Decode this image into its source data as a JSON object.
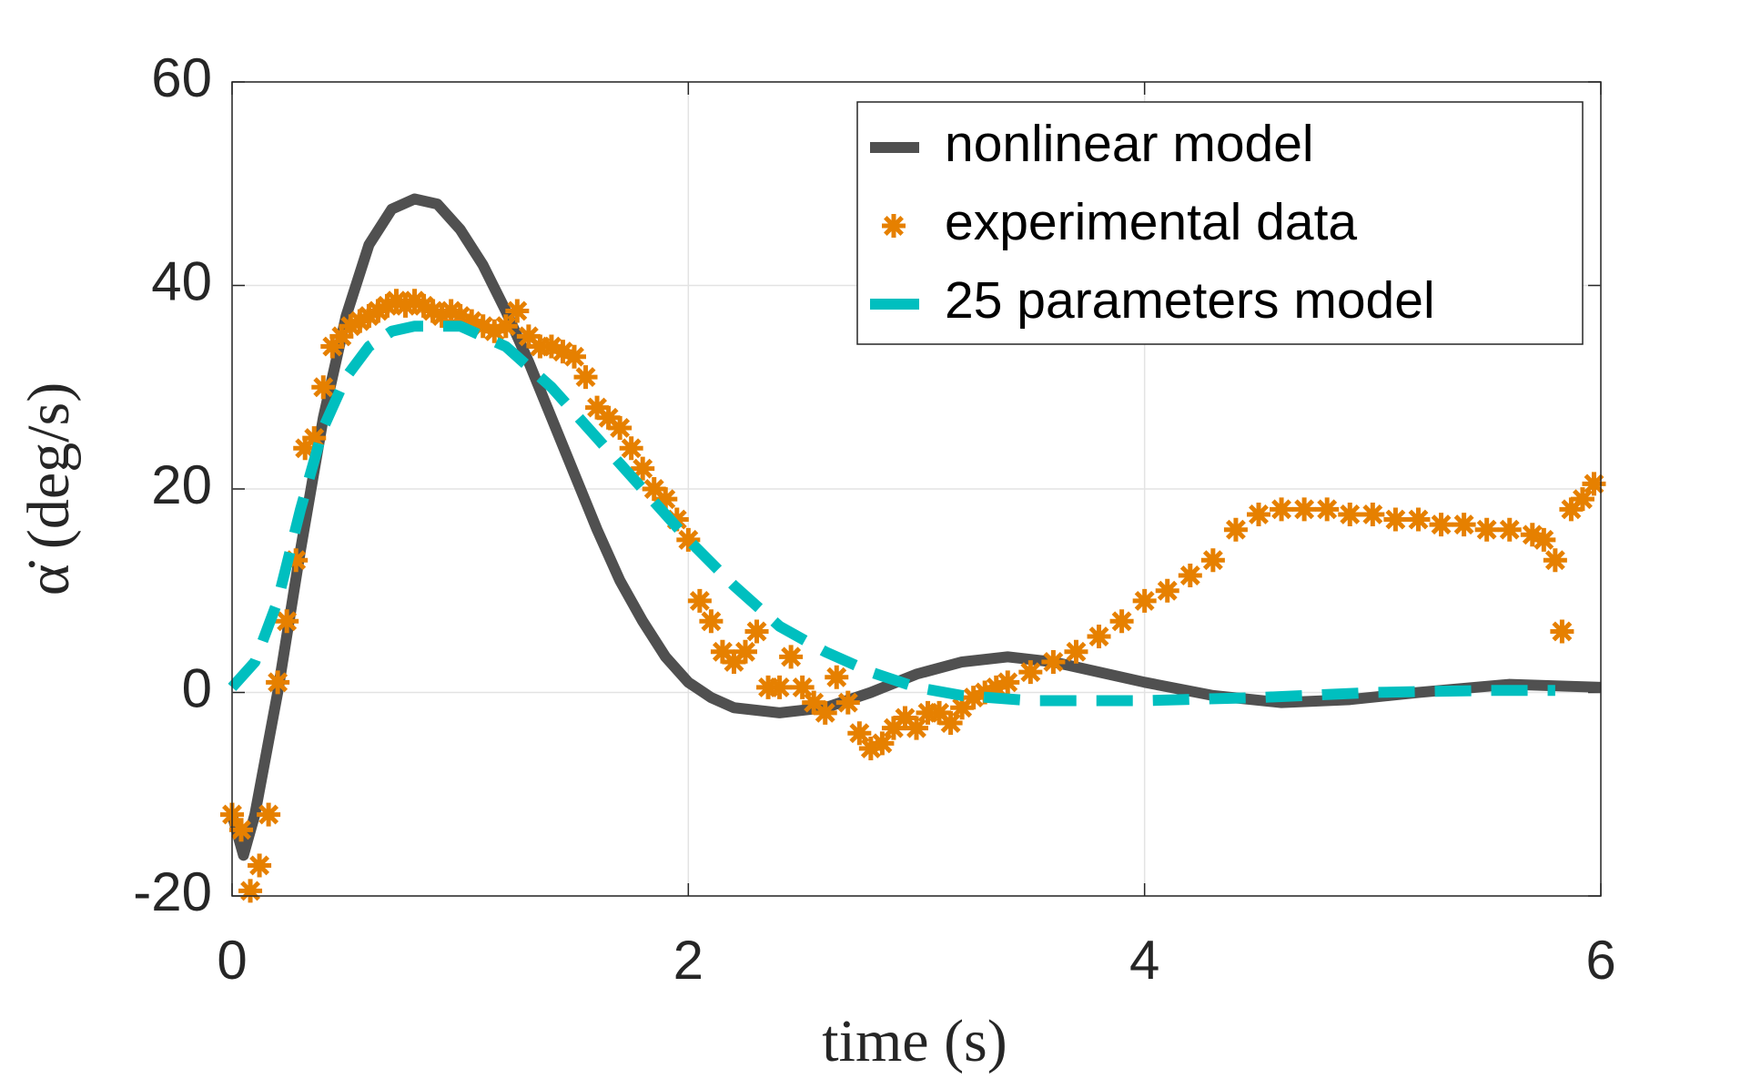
{
  "chart_data": {
    "type": "line",
    "xlabel": "time (s)",
    "ylabel": "α̇ (deg/s)",
    "xlim": [
      0,
      6
    ],
    "xticks": [
      0,
      2,
      4,
      6
    ],
    "ylim": [
      -20,
      60
    ],
    "yticks": [
      -20,
      0,
      20,
      40,
      60
    ],
    "grid": true,
    "legend": "upper right",
    "series": [
      {
        "name": "nonlinear model",
        "color": "#505050",
        "style": "solid",
        "x": [
          0,
          0.05,
          0.1,
          0.2,
          0.3,
          0.4,
          0.5,
          0.6,
          0.7,
          0.8,
          0.9,
          1.0,
          1.1,
          1.2,
          1.3,
          1.4,
          1.5,
          1.6,
          1.7,
          1.8,
          1.9,
          2.0,
          2.1,
          2.2,
          2.4,
          2.6,
          2.8,
          3.0,
          3.2,
          3.4,
          3.6,
          3.8,
          4.0,
          4.3,
          4.6,
          4.9,
          5.2,
          5.6,
          6.0
        ],
        "values": [
          -12,
          -16,
          -12,
          0,
          14,
          27,
          37,
          44,
          47.5,
          48.5,
          48,
          45.5,
          42,
          37.5,
          32.5,
          27,
          21.5,
          16,
          11,
          7,
          3.5,
          1,
          -0.5,
          -1.5,
          -2,
          -1.5,
          0,
          1.8,
          3,
          3.5,
          3,
          2,
          1,
          -0.3,
          -1,
          -0.7,
          0,
          0.8,
          0.5
        ]
      },
      {
        "name": "experimental data",
        "color": "#e68000",
        "style": "asterisk",
        "x": [
          0,
          0.04,
          0.08,
          0.12,
          0.16,
          0.2,
          0.24,
          0.28,
          0.32,
          0.36,
          0.4,
          0.44,
          0.48,
          0.52,
          0.56,
          0.6,
          0.64,
          0.68,
          0.72,
          0.76,
          0.8,
          0.84,
          0.88,
          0.92,
          0.96,
          1.0,
          1.05,
          1.1,
          1.15,
          1.2,
          1.25,
          1.3,
          1.35,
          1.4,
          1.45,
          1.5,
          1.55,
          1.6,
          1.65,
          1.7,
          1.75,
          1.8,
          1.85,
          1.9,
          1.95,
          2.0,
          2.05,
          2.1,
          2.15,
          2.2,
          2.25,
          2.3,
          2.35,
          2.4,
          2.45,
          2.5,
          2.55,
          2.6,
          2.65,
          2.7,
          2.75,
          2.8,
          2.85,
          2.9,
          2.95,
          3.0,
          3.05,
          3.1,
          3.15,
          3.2,
          3.25,
          3.3,
          3.35,
          3.4,
          3.5,
          3.6,
          3.7,
          3.8,
          3.9,
          4.0,
          4.1,
          4.2,
          4.3,
          4.4,
          4.5,
          4.6,
          4.7,
          4.8,
          4.9,
          5.0,
          5.1,
          5.2,
          5.3,
          5.4,
          5.5,
          5.6,
          5.7,
          5.75,
          5.8,
          5.83,
          5.87,
          5.92,
          5.97
        ],
        "values": [
          -12,
          -13.5,
          -19.5,
          -17,
          -12,
          1,
          7,
          13,
          24,
          25,
          30,
          34,
          35,
          36,
          36.5,
          37,
          37.5,
          38,
          38.5,
          38,
          38.5,
          38,
          37.5,
          37,
          37.5,
          37,
          36.5,
          36,
          35.5,
          36,
          37.5,
          35,
          34,
          34,
          33.5,
          33,
          31,
          28,
          27,
          26,
          24,
          22,
          20,
          19,
          17,
          15,
          9,
          7,
          4,
          3,
          4,
          6,
          0.5,
          0.5,
          3.5,
          0.5,
          -1,
          -2,
          1.5,
          -1,
          -4,
          -5.5,
          -5,
          -3.5,
          -2.5,
          -3.5,
          -2,
          -2,
          -3,
          -1.5,
          -0.5,
          0,
          0.5,
          1,
          2,
          3,
          4,
          5.5,
          7,
          9,
          10,
          11.5,
          13,
          16,
          17.5,
          18,
          18,
          18,
          17.5,
          17.5,
          17,
          17,
          16.5,
          16.5,
          16,
          16,
          15.5,
          15,
          13,
          6,
          18,
          19,
          20.5
        ]
      },
      {
        "name": "25 parameters model",
        "color": "#00bfbf",
        "style": "dashed",
        "x": [
          0,
          0.1,
          0.2,
          0.3,
          0.4,
          0.5,
          0.6,
          0.7,
          0.8,
          1.0,
          1.2,
          1.4,
          1.6,
          1.8,
          2.0,
          2.2,
          2.4,
          2.6,
          2.8,
          3.0,
          3.2,
          3.5,
          4.0,
          4.5,
          5.0,
          5.5,
          5.8
        ],
        "values": [
          0.5,
          3,
          9,
          18,
          26,
          31,
          34,
          35.5,
          36,
          36,
          34,
          30,
          25,
          20,
          15,
          10.5,
          6.5,
          4,
          2,
          0.5,
          -0.3,
          -0.8,
          -0.8,
          -0.5,
          0,
          0.2,
          0.2
        ]
      }
    ]
  }
}
